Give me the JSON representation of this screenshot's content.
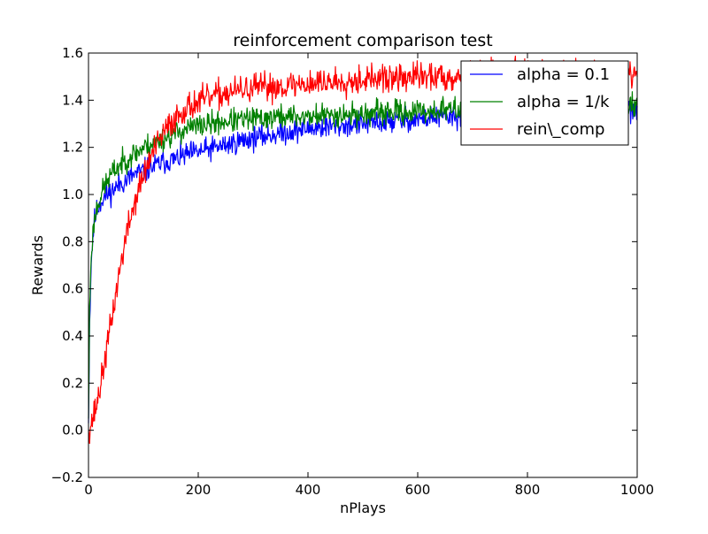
{
  "chart_data": {
    "type": "line",
    "title": "reinforcement comparison test",
    "xlabel": "nPlays",
    "ylabel": "Rewards",
    "xlim": [
      0,
      1000
    ],
    "ylim": [
      -0.2,
      1.6
    ],
    "xticks": [
      0,
      200,
      400,
      600,
      800,
      1000
    ],
    "xtick_labels": [
      "0",
      "200",
      "400",
      "600",
      "800",
      "1000"
    ],
    "yticks": [
      -0.2,
      0.0,
      0.2,
      0.4,
      0.6,
      0.8,
      1.0,
      1.2,
      1.4,
      1.6
    ],
    "ytick_labels": [
      "−0.2",
      "0.0",
      "0.2",
      "0.4",
      "0.6",
      "0.8",
      "1.0",
      "1.2",
      "1.4",
      "1.6"
    ],
    "grid": false,
    "legend_position": "top-right",
    "series": [
      {
        "name": "alpha = 0.1",
        "color": "#0000ff",
        "noise": 0.025,
        "seed": 11,
        "x": [
          0,
          2,
          5,
          10,
          15,
          20,
          25,
          30,
          40,
          50,
          60,
          70,
          80,
          90,
          100,
          120,
          140,
          160,
          180,
          200,
          250,
          300,
          350,
          400,
          450,
          500,
          550,
          600,
          650,
          700,
          750,
          800,
          850,
          900,
          950,
          1000
        ],
        "y": [
          0.03,
          0.45,
          0.72,
          0.88,
          0.93,
          0.96,
          0.98,
          0.99,
          1.01,
          1.03,
          1.05,
          1.06,
          1.08,
          1.09,
          1.1,
          1.12,
          1.14,
          1.15,
          1.17,
          1.18,
          1.21,
          1.24,
          1.26,
          1.28,
          1.29,
          1.3,
          1.31,
          1.32,
          1.33,
          1.33,
          1.34,
          1.34,
          1.35,
          1.35,
          1.35,
          1.36
        ]
      },
      {
        "name": "alpha = 1/k",
        "color": "#008000",
        "noise": 0.025,
        "seed": 23,
        "x": [
          0,
          2,
          5,
          10,
          15,
          20,
          25,
          30,
          40,
          50,
          60,
          70,
          80,
          90,
          100,
          120,
          140,
          160,
          180,
          200,
          250,
          300,
          350,
          400,
          450,
          500,
          550,
          600,
          650,
          700,
          750,
          800,
          850,
          900,
          950,
          1000
        ],
        "y": [
          0.05,
          0.5,
          0.75,
          0.88,
          0.94,
          0.98,
          1.01,
          1.04,
          1.08,
          1.11,
          1.13,
          1.15,
          1.17,
          1.18,
          1.2,
          1.22,
          1.24,
          1.26,
          1.28,
          1.29,
          1.31,
          1.32,
          1.33,
          1.33,
          1.34,
          1.34,
          1.35,
          1.35,
          1.36,
          1.36,
          1.37,
          1.37,
          1.37,
          1.38,
          1.38,
          1.38
        ]
      },
      {
        "name": "rein\\_comp",
        "color": "#ff0000",
        "noise": 0.03,
        "seed": 37,
        "x": [
          0,
          5,
          10,
          15,
          20,
          25,
          30,
          35,
          40,
          45,
          50,
          55,
          60,
          65,
          70,
          80,
          90,
          100,
          110,
          120,
          130,
          140,
          150,
          160,
          170,
          180,
          200,
          220,
          250,
          300,
          350,
          400,
          450,
          500,
          550,
          600,
          650,
          700,
          750,
          800,
          850,
          900,
          950,
          1000
        ],
        "y": [
          0.0,
          0.03,
          0.07,
          0.11,
          0.17,
          0.23,
          0.3,
          0.37,
          0.44,
          0.51,
          0.58,
          0.65,
          0.72,
          0.78,
          0.84,
          0.93,
          1.01,
          1.08,
          1.14,
          1.19,
          1.23,
          1.27,
          1.3,
          1.33,
          1.35,
          1.37,
          1.39,
          1.41,
          1.43,
          1.45,
          1.46,
          1.47,
          1.48,
          1.49,
          1.49,
          1.5,
          1.5,
          1.5,
          1.51,
          1.51,
          1.51,
          1.51,
          1.52,
          1.52
        ]
      }
    ]
  }
}
